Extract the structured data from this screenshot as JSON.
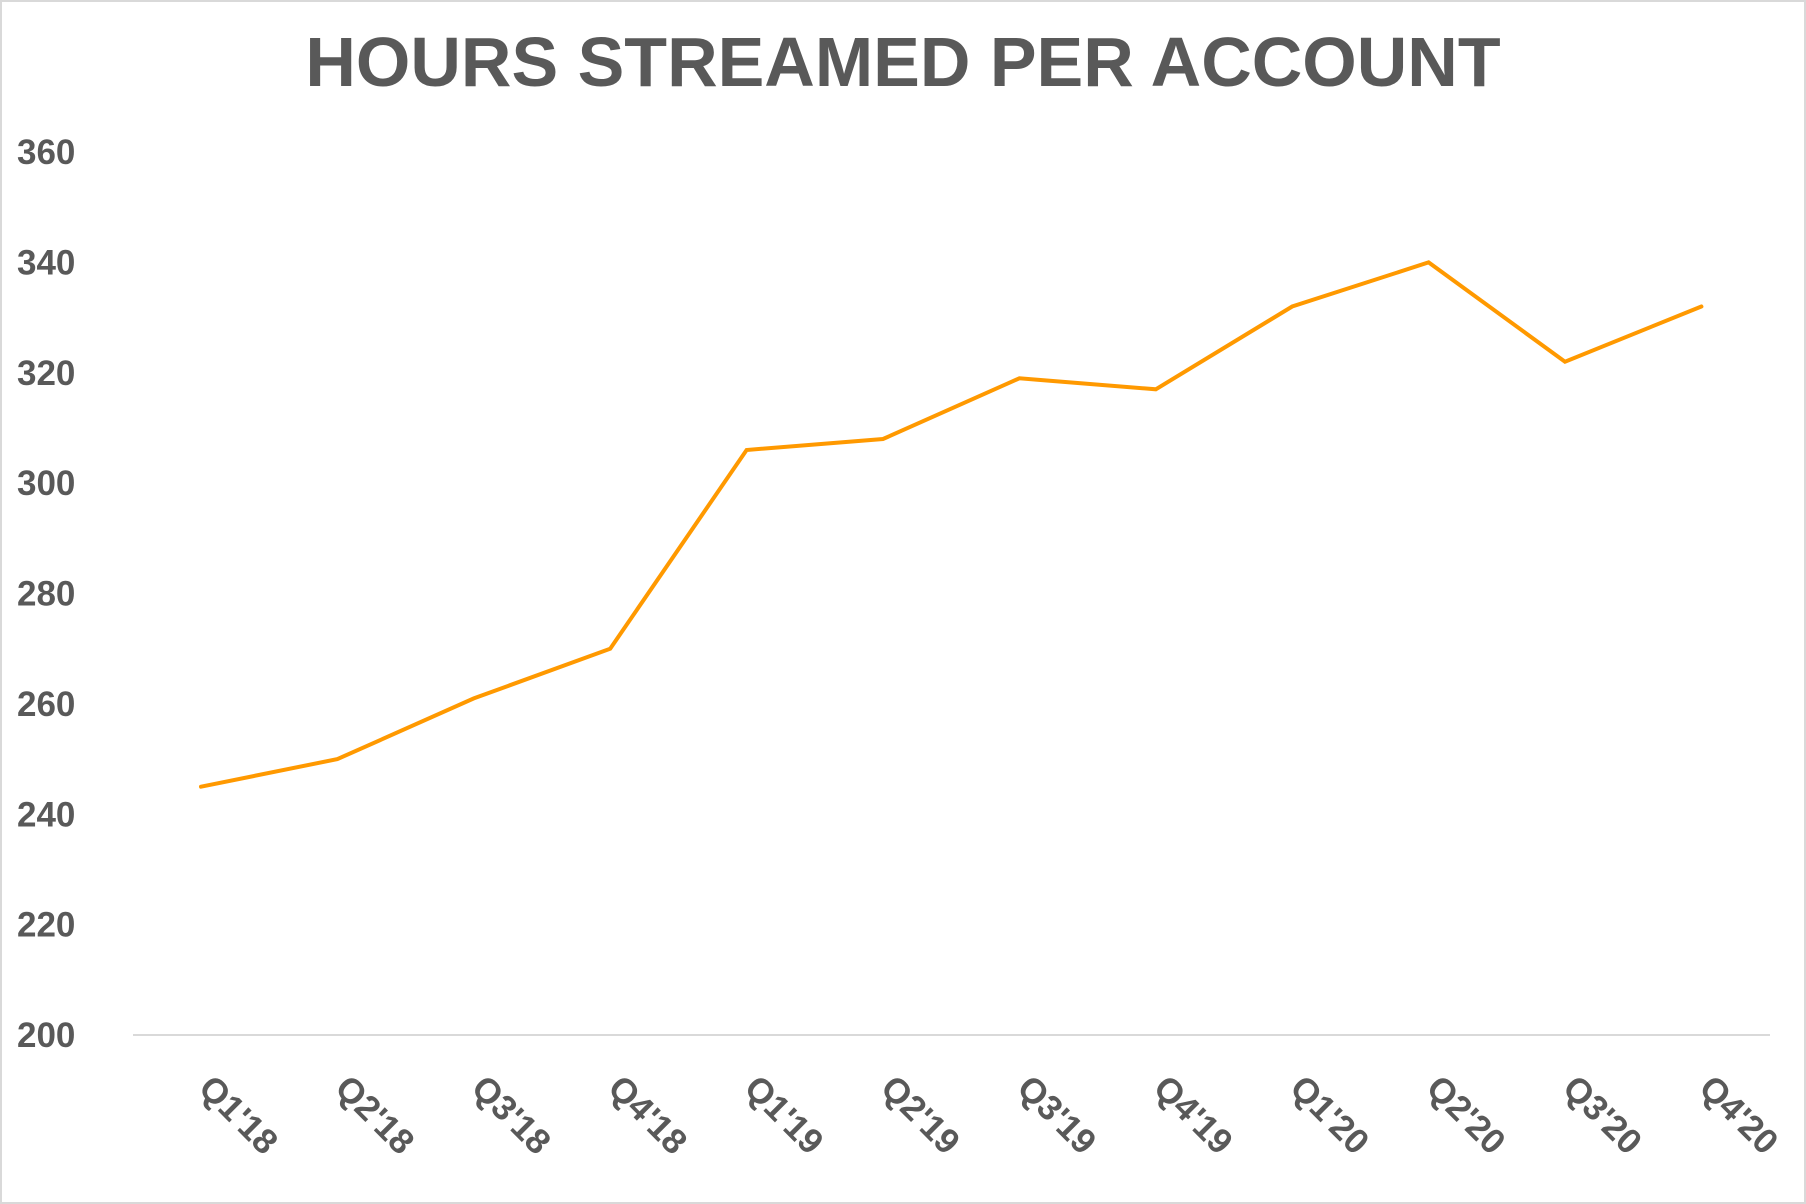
{
  "chart_data": {
    "type": "line",
    "title": "HOURS STREAMED PER ACCOUNT",
    "xlabel": "",
    "ylabel": "",
    "categories": [
      "Q1'18",
      "Q2'18",
      "Q3'18",
      "Q4'18",
      "Q1'19",
      "Q2'19",
      "Q3'19",
      "Q4'19",
      "Q1'20",
      "Q2'20",
      "Q3'20",
      "Q4'20"
    ],
    "series": [
      {
        "name": "Hours streamed per account",
        "color": "#FF9900",
        "values": [
          245,
          250,
          261,
          270,
          306,
          308,
          319,
          317,
          332,
          340,
          322,
          332
        ]
      }
    ],
    "ylim": [
      200,
      360
    ],
    "yticks": [
      200,
      220,
      240,
      260,
      280,
      300,
      320,
      340,
      360
    ],
    "grid": false,
    "legend": "none"
  },
  "colors": {
    "title": "#595959",
    "axis_text": "#595959",
    "axis_line": "#d9d9d9",
    "line": "#FF9900",
    "border": "#d9d9d9"
  }
}
